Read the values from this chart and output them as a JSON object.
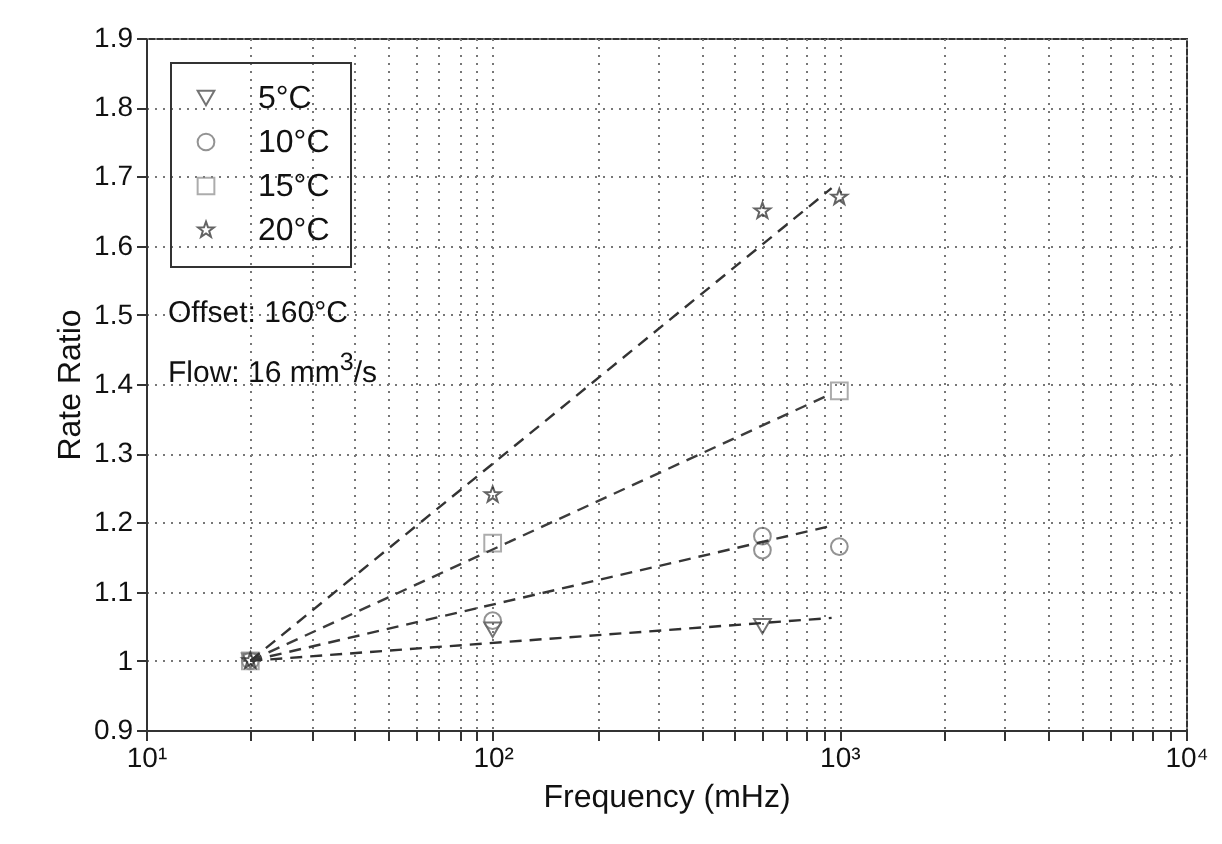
{
  "chart_data": {
    "type": "scatter",
    "xlabel": "Frequency (mHz)",
    "ylabel": "Rate Ratio",
    "log": "x",
    "xlim": [
      10,
      10000
    ],
    "ylim": [
      0.9,
      1.9
    ],
    "xticks": [
      {
        "value": 10,
        "label": "10¹"
      },
      {
        "value": 20,
        "label": null
      },
      {
        "value": 30,
        "label": null
      },
      {
        "value": 40,
        "label": null
      },
      {
        "value": 50,
        "label": null
      },
      {
        "value": 60,
        "label": null
      },
      {
        "value": 70,
        "label": null
      },
      {
        "value": 80,
        "label": null
      },
      {
        "value": 90,
        "label": null
      },
      {
        "value": 100,
        "label": "10²"
      },
      {
        "value": 200,
        "label": null
      },
      {
        "value": 300,
        "label": null
      },
      {
        "value": 400,
        "label": null
      },
      {
        "value": 500,
        "label": null
      },
      {
        "value": 600,
        "label": null
      },
      {
        "value": 700,
        "label": null
      },
      {
        "value": 800,
        "label": null
      },
      {
        "value": 900,
        "label": null
      },
      {
        "value": 1000,
        "label": "10³"
      },
      {
        "value": 2000,
        "label": null
      },
      {
        "value": 3000,
        "label": null
      },
      {
        "value": 4000,
        "label": null
      },
      {
        "value": 5000,
        "label": null
      },
      {
        "value": 6000,
        "label": null
      },
      {
        "value": 7000,
        "label": null
      },
      {
        "value": 8000,
        "label": null
      },
      {
        "value": 9000,
        "label": null
      },
      {
        "value": 10000,
        "label": "10⁴"
      }
    ],
    "yticks": [
      0.9,
      1,
      1.1,
      1.2,
      1.3,
      1.4,
      1.5,
      1.6,
      1.7,
      1.8,
      1.9
    ],
    "grid": true,
    "legend": "top left",
    "annotations": [
      "Offset: 160°C",
      "Flow: 16 mm$^{3}$/s"
    ],
    "series": [
      {
        "name": "5°C",
        "color": "#3a3a3a",
        "marker": "triangle-down",
        "x": [
          20,
          100,
          600
        ],
        "values": [
          1.0,
          1.045,
          1.05
        ]
      },
      {
        "name": "10°C",
        "color": "#666666",
        "marker": "circle",
        "x": [
          20,
          100,
          600,
          600,
          1000
        ],
        "values": [
          1.0,
          1.058,
          1.18,
          1.16,
          1.165
        ]
      },
      {
        "name": "15°C",
        "color": "#8a8a8a",
        "marker": "square",
        "x": [
          20,
          100,
          1000
        ],
        "values": [
          1.0,
          1.17,
          1.39
        ]
      },
      {
        "name": "20°C",
        "color": "#222222",
        "marker": "star",
        "x": [
          20,
          100,
          600,
          1000
        ],
        "values": [
          1.0,
          1.24,
          1.65,
          1.67
        ]
      },
      {
        "type": "line",
        "color": "#303030",
        "line_style": "dashed",
        "marker": "none",
        "x": [
          20,
          950
        ],
        "values": [
          1.0,
          1.062
        ]
      },
      {
        "type": "line",
        "color": "#363636",
        "line_style": "dashed",
        "marker": "none",
        "x": [
          20,
          950
        ],
        "values": [
          1.0,
          1.195
        ]
      },
      {
        "type": "line",
        "color": "#3c3c3c",
        "line_style": "dashed",
        "marker": "none",
        "x": [
          20,
          950
        ],
        "values": [
          1.0,
          1.386
        ]
      },
      {
        "type": "line",
        "color": "#333333",
        "line_style": "dashed",
        "marker": "none",
        "x": [
          20,
          950
        ],
        "values": [
          1.0,
          1.683
        ]
      }
    ]
  }
}
